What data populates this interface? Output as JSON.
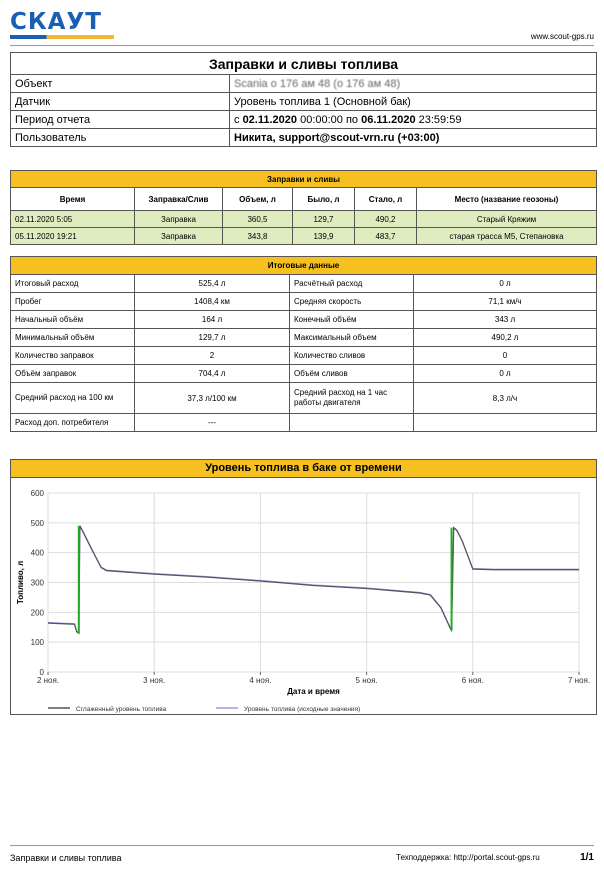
{
  "header": {
    "logo_text": "СКАУТ",
    "site": "www.scout-gps.ru"
  },
  "report": {
    "title": "Заправки и сливы топлива",
    "rows": {
      "object_label": "Объект",
      "object_value": "Scania о 176 ам 48 (о 176 ам 48)",
      "sensor_label": "Датчик",
      "sensor_value": "Уровень топлива 1 (Основной бак)",
      "period_label": "Период отчета",
      "period_from_word": "с",
      "period_from_date": "02.11.2020",
      "period_from_time": "00:00:00",
      "period_to_word": "по",
      "period_to_date": "06.11.2020",
      "period_to_time": "23:59:59",
      "user_label": "Пользователь",
      "user_value": "Никита, support@scout-vrn.ru (+03:00)"
    }
  },
  "refuel": {
    "title": "Заправки и сливы",
    "headers": [
      "Время",
      "Заправка/Слив",
      "Объем, л",
      "Было, л",
      "Стало, л",
      "Место (название геозоны)"
    ],
    "rows": [
      [
        "02.11.2020 5:05",
        "Заправка",
        "360,5",
        "129,7",
        "490,2",
        "Старый Кряжим"
      ],
      [
        "05.11.2020 19:21",
        "Заправка",
        "343,8",
        "139,9",
        "483,7",
        "старая трасса М5, Степановка"
      ]
    ]
  },
  "summary": {
    "title": "Итоговые данные",
    "rows": [
      [
        "Итоговый расход",
        "525,4 л",
        "Расчётный расход",
        "0 л"
      ],
      [
        "Пробег",
        "1408,4 км",
        "Средняя скорость",
        "71,1 км/ч"
      ],
      [
        "Начальный объём",
        "164 л",
        "Конечный объём",
        "343 л"
      ],
      [
        "Минимальный объём",
        "129,7 л",
        "Максимальный объем",
        "490,2 л"
      ],
      [
        "Количество заправок",
        "2",
        "Количество сливов",
        "0"
      ],
      [
        "Объём заправок",
        "704,4 л",
        "Объём сливов",
        "0 л"
      ],
      [
        "Средний расход на 100 км",
        "37,3 л/100 км",
        "Средний расход на 1 час работы двигателя",
        "8,3 л/ч"
      ],
      [
        "Расход доп. потребителя",
        "---",
        "",
        ""
      ]
    ]
  },
  "chart_data": {
    "type": "line",
    "title": "Уровень топлива в баке от времени",
    "xlabel": "Дата и время",
    "ylabel": "Топливо, л",
    "ylim": [
      0,
      600
    ],
    "yticks": [
      0,
      100,
      200,
      300,
      400,
      500,
      600
    ],
    "xlim": [
      2,
      7
    ],
    "xticks": [
      2,
      3,
      4,
      5,
      6,
      7
    ],
    "xtick_labels": [
      "2 ноя.",
      "3 ноя.",
      "4 ноя.",
      "5 ноя.",
      "6 ноя.",
      "7 ноя."
    ],
    "grid": true,
    "legend_position": "bottom-left",
    "series": [
      {
        "name": "Сглаженный уровень топлива",
        "color": "#555566",
        "x": [
          2.0,
          2.25,
          2.27,
          2.29,
          2.3,
          2.33,
          2.4,
          2.5,
          2.55,
          3.0,
          3.5,
          4.0,
          4.5,
          5.0,
          5.5,
          5.6,
          5.7,
          5.79,
          5.8,
          5.82,
          5.85,
          5.9,
          6.0,
          6.2,
          7.0
        ],
        "y": [
          164,
          160,
          135,
          130,
          490,
          470,
          420,
          350,
          340,
          328,
          318,
          305,
          290,
          280,
          265,
          258,
          215,
          145,
          140,
          484,
          475,
          440,
          345,
          343,
          343
        ]
      },
      {
        "name": "Уровень топлива (исходные значения)",
        "color": "#9a9ae0",
        "x": [
          2.0,
          2.25,
          2.27,
          2.29,
          2.3,
          2.33,
          2.4,
          2.5,
          2.55,
          3.0,
          3.5,
          4.0,
          4.5,
          5.0,
          5.5,
          5.6,
          5.7,
          5.79,
          5.8,
          5.82,
          5.85,
          5.9,
          6.0,
          6.2,
          7.0
        ],
        "y": [
          166,
          162,
          137,
          132,
          488,
          468,
          418,
          352,
          342,
          330,
          320,
          307,
          292,
          282,
          267,
          260,
          217,
          147,
          142,
          482,
          473,
          438,
          347,
          345,
          345
        ]
      }
    ],
    "events": [
      {
        "name": "Заправка",
        "color": "#22aa22",
        "x": 2.29,
        "from": 130,
        "to": 490
      },
      {
        "name": "Заправка",
        "color": "#22aa22",
        "x": 5.8,
        "from": 140,
        "to": 484
      }
    ]
  },
  "footer": {
    "left": "Заправки и сливы топлива",
    "support": "Техподдержка: http://portal.scout-gps.ru",
    "page": "1/1"
  }
}
